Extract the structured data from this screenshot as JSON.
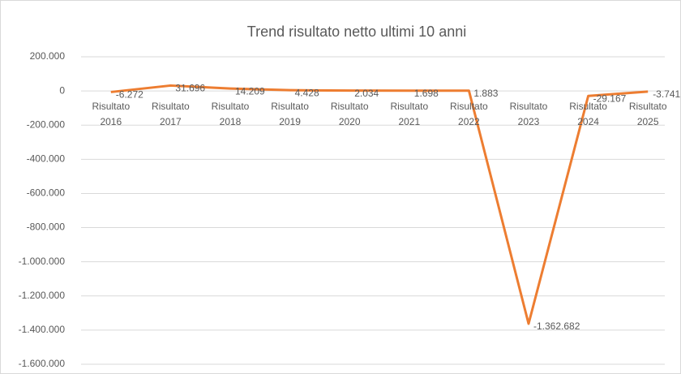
{
  "chart_data": {
    "type": "line",
    "title": "Trend risultato netto ultimi 10 anni",
    "categories": [
      "Risultato 2016",
      "Risultato 2017",
      "Risultato 2018",
      "Risultato 2019",
      "Risultato 2020",
      "Risultato 2021",
      "Risultato 2022",
      "Risultato 2023",
      "Risultato 2024",
      "Risultato 2025"
    ],
    "values": [
      -6272,
      31696,
      14209,
      4428,
      2034,
      1698,
      1883,
      -1362682,
      -29167,
      -3741
    ],
    "value_labels": [
      "-6.272",
      "31.696",
      "14.209",
      "4.428",
      "2.034",
      "1.698",
      "1.883",
      "-1.362.682",
      "-29.167",
      "-3.741"
    ],
    "color": "#ed7d31",
    "ylim": [
      -1600000,
      200000
    ],
    "yticks": [
      {
        "value": -1600000,
        "label": "-1.600.000"
      },
      {
        "value": -1400000,
        "label": "-1.400.000"
      },
      {
        "value": -1200000,
        "label": "-1.200.000"
      },
      {
        "value": -1000000,
        "label": "-1.000.000"
      },
      {
        "value": -800000,
        "label": "-800.000"
      },
      {
        "value": -600000,
        "label": "-600.000"
      },
      {
        "value": -400000,
        "label": "-400.000"
      },
      {
        "value": -200000,
        "label": "-200.000"
      },
      0,
      {
        "value": 200000,
        "label": "200.000"
      }
    ],
    "grid": true
  }
}
